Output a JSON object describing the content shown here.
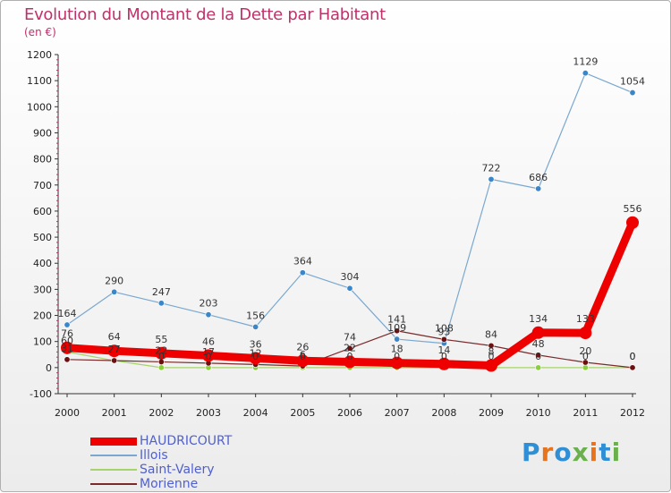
{
  "title": "Evolution du Montant de la Dette par Habitant",
  "subtitle": "(en €)",
  "brand": "Proxiti",
  "chart_data": {
    "type": "line",
    "x": [
      "2000",
      "2001",
      "2002",
      "2003",
      "2004",
      "2005",
      "2006",
      "2007",
      "2008",
      "2009",
      "2010",
      "2011",
      "2012"
    ],
    "ylim": [
      -100,
      1200
    ],
    "yticks": [
      -100,
      0,
      100,
      200,
      300,
      400,
      500,
      600,
      700,
      800,
      900,
      1000,
      1100,
      1200
    ],
    "grid": false,
    "legend_position": "bottom-left",
    "series": [
      {
        "name": "HAUDRICOURT",
        "color": "#ee0000",
        "width": 9,
        "marker_r": 7,
        "values": [
          76,
          64,
          55,
          46,
          36,
          26,
          22,
          18,
          14,
          8,
          134,
          133,
          556
        ],
        "labels": [
          "76",
          "64",
          "55",
          "46",
          "36",
          "26",
          "22",
          "18",
          "14",
          "8",
          "134",
          "133",
          "556"
        ]
      },
      {
        "name": "Illois",
        "color": "#7aa8d0",
        "marker_color": "#3a86c8",
        "width": 1.2,
        "marker_r": 3.2,
        "values": [
          164,
          290,
          247,
          203,
          156,
          364,
          304,
          109,
          93,
          722,
          686,
          1129,
          1054
        ],
        "labels": [
          "164",
          "290",
          "247",
          "203",
          "156",
          "364",
          "304",
          "109",
          "93",
          "722",
          "686",
          "1129",
          "1054"
        ]
      },
      {
        "name": "Saint-Valery",
        "color": "#a6d46a",
        "marker_color": "#8ccf3e",
        "width": 1.2,
        "marker_r": 3.2,
        "values": [
          60,
          27,
          0,
          0,
          0,
          0,
          0,
          0,
          0,
          0,
          0,
          0,
          0
        ],
        "labels": [
          "60",
          "27",
          "0",
          "0",
          "0",
          "0",
          "0",
          "0",
          "0",
          "0",
          "0",
          "0",
          "0"
        ]
      },
      {
        "name": "Morienne",
        "color": "#7a2a2a",
        "marker_color": "#6a1010",
        "width": 1.2,
        "marker_r": 3.2,
        "values": [
          31,
          27,
          22,
          17,
          12,
          6,
          74,
          141,
          108,
          84,
          48,
          20,
          0
        ],
        "labels": [
          "31",
          "27",
          "22",
          "17",
          "12",
          "6",
          "74",
          "141",
          "108",
          "84",
          "48",
          "20",
          "0"
        ]
      }
    ]
  }
}
